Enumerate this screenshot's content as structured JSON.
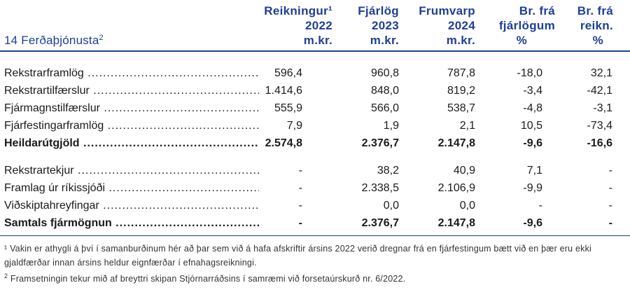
{
  "section": {
    "title": "14 Ferðaþjónusta",
    "footnote_mark": "2"
  },
  "columns": [
    {
      "lines": [
        "Reikningur¹",
        "2022",
        "m.kr."
      ]
    },
    {
      "lines": [
        "Fjárlög",
        "2023",
        "m.kr."
      ]
    },
    {
      "lines": [
        "Frumvarp",
        "2024",
        "m.kr."
      ]
    },
    {
      "lines": [
        "Br. frá",
        "fjárlögum",
        "%"
      ]
    },
    {
      "lines": [
        "Br. frá",
        "reikn.",
        "%"
      ]
    }
  ],
  "rows": [
    {
      "label": "Rekstrarframlög",
      "values": [
        "596,4",
        "960,8",
        "787,8",
        "-18,0",
        "32,1"
      ],
      "bold": false
    },
    {
      "label": "Rekstrartilfærslur",
      "values": [
        "1.414,6",
        "848,0",
        "819,2",
        "-3,4",
        "-42,1"
      ],
      "bold": false
    },
    {
      "label": "Fjármagnstilfærslur",
      "values": [
        "555,9",
        "566,0",
        "538,7",
        "-4,8",
        "-3,1"
      ],
      "bold": false
    },
    {
      "label": "Fjárfestingarframlög",
      "values": [
        "7,9",
        "1,9",
        "2,1",
        "10,5",
        "-73,4"
      ],
      "bold": false
    },
    {
      "label": "Heildarútgjöld",
      "values": [
        "2.574,8",
        "2.376,7",
        "2.147,8",
        "-9,6",
        "-16,6"
      ],
      "bold": true
    },
    {
      "label": "Rekstrartekjur",
      "values": [
        "-",
        "38,2",
        "40,9",
        "7,1",
        "-"
      ],
      "bold": false
    },
    {
      "label": "Framlag úr ríkissjóði",
      "values": [
        "-",
        "2.338,5",
        "2.106,9",
        "-9,9",
        "-"
      ],
      "bold": false
    },
    {
      "label": "Viðskiptahreyfingar",
      "values": [
        "-",
        "0,0",
        "0,0",
        "-",
        "-"
      ],
      "bold": false
    },
    {
      "label": "Samtals fjármögnun",
      "values": [
        "-",
        "2.376,7",
        "2.147,8",
        "-9,6",
        "-"
      ],
      "bold": true
    }
  ],
  "footnotes": [
    {
      "mark": "¹",
      "text": "Vakin er athygli á því í samanburðinum hér að þar sem við á hafa afskriftir ársins 2022 verið dregnar frá en fjárfestingum bætt við en þær eru ekki gjaldfærðar innan ársins heldur eignfærðar í efnahagsreikningi."
    },
    {
      "mark": "2",
      "text": "Framsetningin tekur mið af breyttri skipan Stjórnarráðsins í samræmi við forsetaúrskurð nr. 6/2022."
    }
  ],
  "colors": {
    "header": "#1f3f95",
    "text": "#1a1a1a"
  }
}
